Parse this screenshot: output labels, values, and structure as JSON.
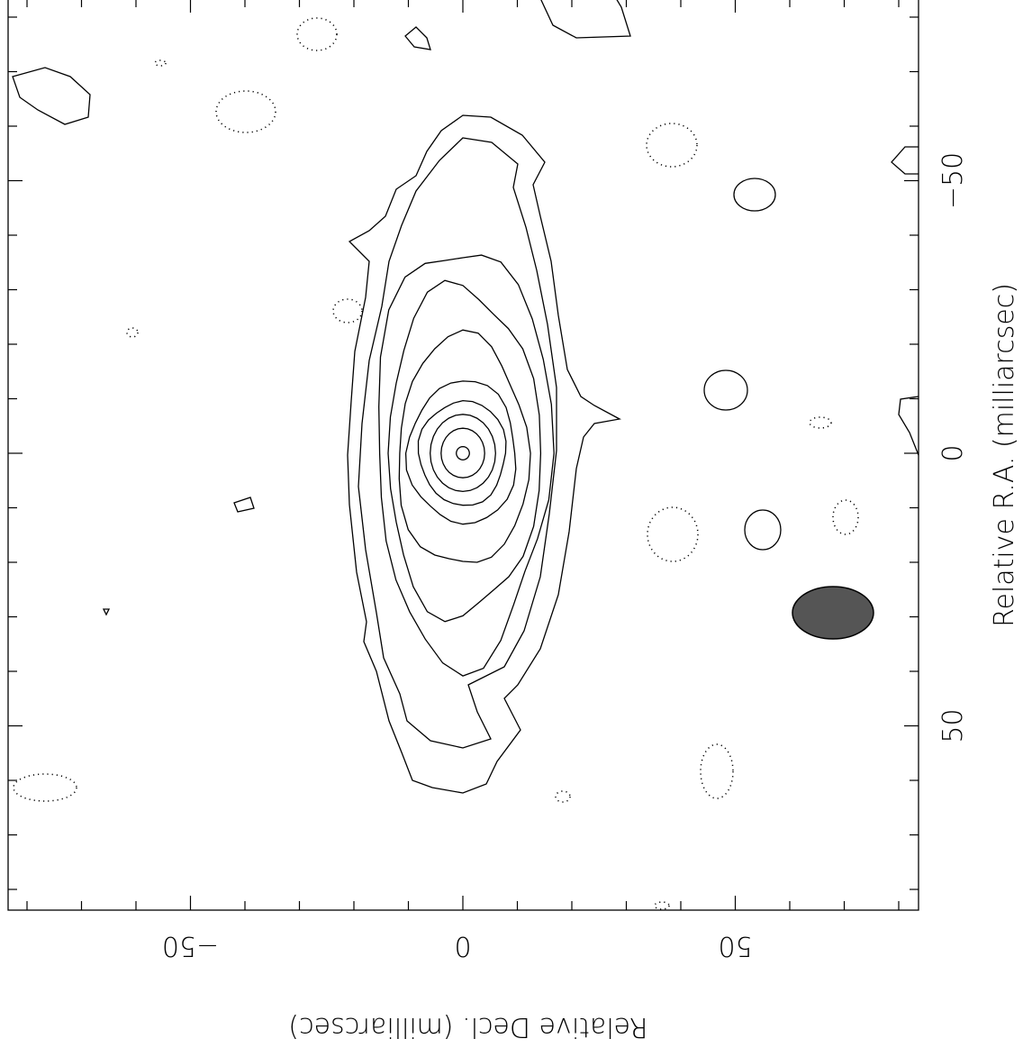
{
  "chart_data": {
    "type": "contour",
    "xlabel": "Relative R.A. (milliarcsec)",
    "ylabel": "Relative Decl. (milliarcsec)",
    "x_ticks": [
      50,
      0,
      -50
    ],
    "y_ticks": [
      50,
      0,
      -50
    ],
    "x_tick_labels": [
      "50",
      "0",
      "−50"
    ],
    "y_tick_labels": [
      "50",
      "0",
      "−50"
    ],
    "x_range": [
      84,
      -84
    ],
    "y_range": [
      84,
      -83
    ],
    "orientation": "rotated 180 degrees",
    "contours": {
      "positive_style": "solid",
      "negative_style": "dotted",
      "core_position": [
        0,
        0
      ],
      "core_levels": [
        {
          "dx": [
            -1.2,
            1.2
          ],
          "dy": [
            -1.2,
            1.2
          ]
        },
        {
          "dx": [
            -4,
            4
          ],
          "dy": [
            -4.5,
            4.5
          ]
        },
        {
          "dx": [
            -6,
            6
          ],
          "dy": [
            -7,
            7
          ]
        },
        {
          "dx": [
            -8,
            8
          ],
          "dy": [
            -9.5,
            9.5
          ]
        },
        {
          "dx": [
            -10,
            10
          ],
          "dy": [
            -13,
            13
          ]
        },
        {
          "dx": [
            -12,
            12
          ],
          "dy": [
            -21,
            21
          ]
        },
        {
          "dx": [
            -14,
            14
          ],
          "dy": [
            -30,
            30
          ]
        },
        {
          "dx": [
            -16,
            16
          ],
          "dy": [
            -38,
            38
          ]
        }
      ]
    },
    "beam": {
      "x": -70,
      "y": -69,
      "major": 7.5,
      "minor": 4.8,
      "color": "#555555"
    }
  }
}
